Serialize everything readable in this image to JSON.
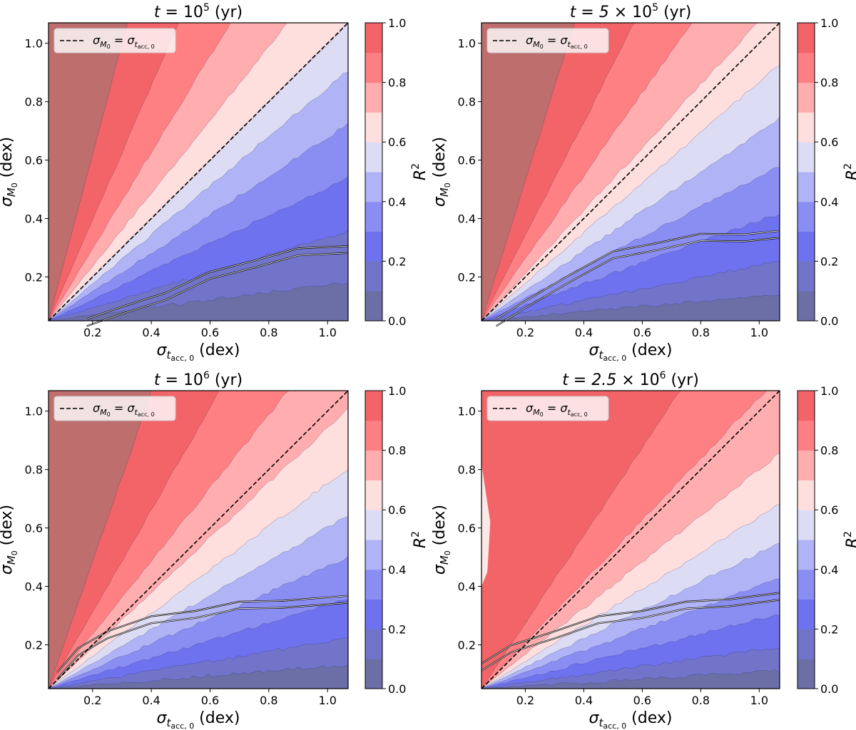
{
  "figure": {
    "cbar_label_main": "R",
    "cbar_label_sup": "2",
    "x_label": {
      "sym": "σ",
      "sub": "t",
      "subsub": "acc, 0",
      "unit": " (dex)"
    },
    "y_label": {
      "sym": "σ",
      "sub": "M",
      "subsub": "0",
      "unit": " (dex)"
    },
    "legend": {
      "lhs": "σ",
      "lhs_sub": "M",
      "lhs_subsub": "0",
      "eq": " = ",
      "rhs": "σ",
      "rhs_sub": "t",
      "rhs_subsub": "acc, 0"
    }
  },
  "chart_data": [
    {
      "type": "contour",
      "title": {
        "lhs": "t = ",
        "base": "10",
        "sup": "5",
        "suffix": " (yr)"
      },
      "xlim": [
        0.05,
        1.07
      ],
      "ylim": [
        0.05,
        1.07
      ],
      "xticks": [
        "0.2",
        "0.4",
        "0.6",
        "0.8",
        "1.0"
      ],
      "yticks": [
        "0.2",
        "0.4",
        "0.6",
        "0.8",
        "1.0"
      ],
      "xtick_values": [
        0.2,
        0.4,
        0.6,
        0.8,
        1.0
      ],
      "ytick_values": [
        0.2,
        0.4,
        0.6,
        0.8,
        1.0
      ],
      "cbar_ticks": [
        "0.0",
        "0.2",
        "0.4",
        "0.6",
        "0.8",
        "1.0"
      ],
      "levels": [
        0.0,
        0.1,
        0.2,
        0.3,
        0.4,
        0.5,
        0.6,
        0.7,
        0.8,
        0.9,
        1.0
      ],
      "level_colors": [
        "#6b6fa6",
        "#7174c9",
        "#6e72ee",
        "#8a8ef2",
        "#b0b3f5",
        "#dcdcf5",
        "#ffdede",
        "#ffadae",
        "#ff8083",
        "#f26468",
        "#bf6e6e"
      ],
      "boundary_slopes": [
        0.13,
        0.3,
        0.48,
        0.66,
        0.84,
        1.0,
        1.25,
        1.65,
        2.3,
        3.8
      ],
      "best_fit_band": {
        "x": [
          0.18,
          0.3,
          0.45,
          0.6,
          0.75,
          0.9,
          1.07
        ],
        "y": [
          0.05,
          0.08,
          0.14,
          0.2,
          0.25,
          0.28,
          0.3
        ]
      }
    },
    {
      "type": "contour",
      "title": {
        "lhs": "t = 5 × ",
        "base": "10",
        "sup": "5",
        "suffix": " (yr)"
      },
      "xlim": [
        0.05,
        1.07
      ],
      "ylim": [
        0.05,
        1.07
      ],
      "xticks": [
        "0.2",
        "0.4",
        "0.6",
        "0.8",
        "1.0"
      ],
      "yticks": [
        "0.2",
        "0.4",
        "0.6",
        "0.8",
        "1.0"
      ],
      "xtick_values": [
        0.2,
        0.4,
        0.6,
        0.8,
        1.0
      ],
      "ytick_values": [
        0.2,
        0.4,
        0.6,
        0.8,
        1.0
      ],
      "cbar_ticks": [
        "0.0",
        "0.2",
        "0.4",
        "0.6",
        "0.8",
        "1.0"
      ],
      "levels": [
        0.0,
        0.1,
        0.2,
        0.3,
        0.4,
        0.5,
        0.6,
        0.7,
        0.8,
        0.9,
        1.0
      ],
      "level_colors": [
        "#6b6fa6",
        "#7174c9",
        "#6e72ee",
        "#8a8ef2",
        "#b0b3f5",
        "#dcdcf5",
        "#ffdede",
        "#ffadae",
        "#ff8083",
        "#f26468",
        "#bf6e6e"
      ],
      "boundary_slopes": [
        0.09,
        0.2,
        0.36,
        0.52,
        0.68,
        0.86,
        1.08,
        1.42,
        1.95,
        3.2
      ],
      "best_fit_band": {
        "x": [
          0.1,
          0.2,
          0.35,
          0.5,
          0.65,
          0.8,
          0.95,
          1.07
        ],
        "y": [
          0.05,
          0.1,
          0.2,
          0.27,
          0.31,
          0.33,
          0.34,
          0.34
        ]
      }
    },
    {
      "type": "contour",
      "title": {
        "lhs": "t = ",
        "base": "10",
        "sup": "6",
        "suffix": " (yr)"
      },
      "xlim": [
        0.05,
        1.07
      ],
      "ylim": [
        0.05,
        1.07
      ],
      "xticks": [
        "0.2",
        "0.4",
        "0.6",
        "0.8",
        "1.0"
      ],
      "yticks": [
        "0.2",
        "0.4",
        "0.6",
        "0.8",
        "1.0"
      ],
      "xtick_values": [
        0.2,
        0.4,
        0.6,
        0.8,
        1.0
      ],
      "ytick_values": [
        0.2,
        0.4,
        0.6,
        0.8,
        1.0
      ],
      "cbar_ticks": [
        "0.0",
        "0.2",
        "0.4",
        "0.6",
        "0.8",
        "1.0"
      ],
      "levels": [
        0.0,
        0.1,
        0.2,
        0.3,
        0.4,
        0.5,
        0.6,
        0.7,
        0.8,
        0.9,
        1.0
      ],
      "level_colors": [
        "#6b6fa6",
        "#7174c9",
        "#6e72ee",
        "#8a8ef2",
        "#b0b3f5",
        "#dcdcf5",
        "#ffdede",
        "#ffadae",
        "#ff8083",
        "#f26468",
        "#bf6e6e"
      ],
      "boundary_slopes": [
        0.08,
        0.17,
        0.3,
        0.44,
        0.58,
        0.74,
        0.94,
        1.25,
        1.75,
        2.9
      ],
      "best_fit_band": {
        "x": [
          0.08,
          0.15,
          0.25,
          0.4,
          0.55,
          0.7,
          0.85,
          1.07
        ],
        "y": [
          0.1,
          0.17,
          0.24,
          0.28,
          0.31,
          0.33,
          0.345,
          0.35
        ]
      }
    },
    {
      "type": "contour",
      "title": {
        "lhs": "t = 2.5 × ",
        "base": "10",
        "sup": "6",
        "suffix": " (yr)"
      },
      "xlim": [
        0.05,
        1.07
      ],
      "ylim": [
        0.05,
        1.07
      ],
      "xticks": [
        "0.2",
        "0.4",
        "0.6",
        "0.8",
        "1.0"
      ],
      "yticks": [
        "0.2",
        "0.4",
        "0.6",
        "0.8",
        "1.0"
      ],
      "xtick_values": [
        0.2,
        0.4,
        0.6,
        0.8,
        1.0
      ],
      "ytick_values": [
        0.2,
        0.4,
        0.6,
        0.8,
        1.0
      ],
      "cbar_ticks": [
        "0.0",
        "0.2",
        "0.4",
        "0.6",
        "0.8",
        "1.0"
      ],
      "levels": [
        0.0,
        0.1,
        0.2,
        0.3,
        0.4,
        0.5,
        0.6,
        0.7,
        0.8,
        0.9,
        1.0
      ],
      "level_colors": [
        "#6b6fa6",
        "#7174c9",
        "#6e72ee",
        "#8a8ef2",
        "#b0b3f5",
        "#dcdcf5",
        "#ffdede",
        "#ffadae",
        "#ff8083",
        "#f26468",
        "#bf6e6e"
      ],
      "boundary_slopes": [
        0.06,
        0.14,
        0.25,
        0.37,
        0.49,
        0.62,
        0.79,
        1.05,
        1.5
      ],
      "best_fit_band": {
        "x": [
          0.05,
          0.15,
          0.3,
          0.45,
          0.6,
          0.75,
          0.9,
          1.07
        ],
        "y": [
          0.13,
          0.18,
          0.24,
          0.28,
          0.31,
          0.33,
          0.35,
          0.36
        ]
      }
    }
  ]
}
